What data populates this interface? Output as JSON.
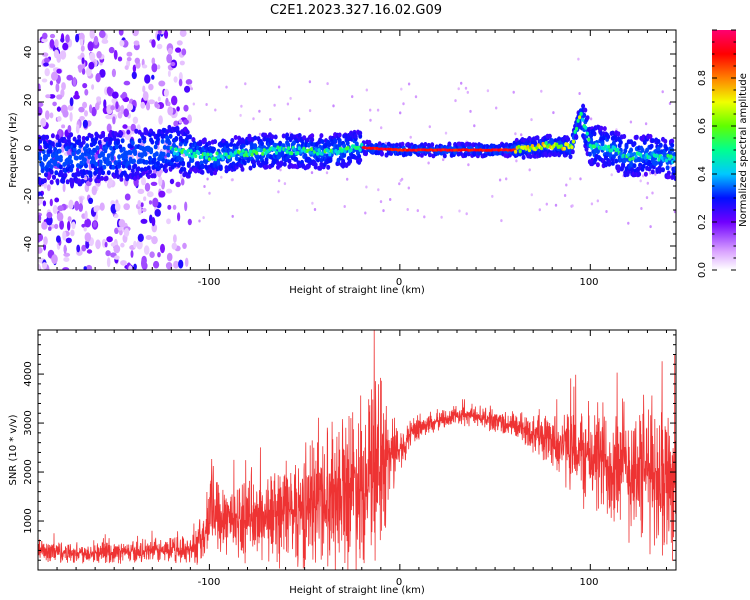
{
  "title": "C2E1.2023.327.16.02.G09",
  "chart_data": [
    {
      "type": "heatmap",
      "xlabel": "Height of straight line (km)",
      "ylabel": "Frequency (Hz)",
      "xlim": [
        -190,
        145
      ],
      "ylim": [
        -50,
        50
      ],
      "xticks": [
        "-100",
        "0",
        "100"
      ],
      "yticks": [
        "-40",
        "-20",
        "0",
        "20",
        "40"
      ],
      "colorbar": {
        "label": "Normalized spectral amplitude",
        "range": [
          0,
          1
        ],
        "ticks": [
          "0.0",
          "0.2",
          "0.4",
          "0.6",
          "0.8"
        ],
        "colors": [
          "#ffffff",
          "#e8c8ff",
          "#8000ff",
          "#0000ff",
          "#00c8ff",
          "#00ff80",
          "#80ff00",
          "#ffff00",
          "#ff8000",
          "#ff0000",
          "#ff0080"
        ]
      },
      "ridge": {
        "x": [
          -190,
          -160,
          -140,
          -120,
          -100,
          -80,
          -60,
          -40,
          -20,
          0,
          20,
          40,
          60,
          70,
          80,
          90,
          95,
          100,
          110,
          120,
          130,
          145
        ],
        "y": [
          -4,
          -3,
          -2,
          0,
          -3,
          -1,
          0,
          -1,
          1,
          0,
          0,
          0,
          0,
          1,
          2,
          1,
          15,
          2,
          1,
          -3,
          -2,
          -4
        ]
      }
    },
    {
      "type": "line",
      "xlabel": "Height of straight line (km)",
      "ylabel": "SNR (10 * v/v)",
      "xlim": [
        -190,
        145
      ],
      "ylim": [
        0,
        4900
      ],
      "xticks": [
        "-100",
        "0",
        "100"
      ],
      "yticks": [
        "1000",
        "2000",
        "3000",
        "4000"
      ],
      "color": "#ee3333",
      "envelope": {
        "x": [
          -190,
          -170,
          -150,
          -130,
          -110,
          -102,
          -100,
          -90,
          -80,
          -70,
          -60,
          -50,
          -40,
          -30,
          -20,
          -10,
          -5,
          0,
          10,
          20,
          30,
          40,
          50,
          60,
          70,
          80,
          90,
          100,
          110,
          120,
          130,
          145
        ],
        "mean": [
          400,
          350,
          360,
          380,
          420,
          700,
          1300,
          1100,
          1000,
          1100,
          1200,
          1300,
          1500,
          1700,
          1900,
          2100,
          2400,
          2500,
          2900,
          3050,
          3150,
          3150,
          3050,
          2950,
          2800,
          2650,
          2450,
          2300,
          2200,
          2100,
          2000,
          1900
        ],
        "amp": [
          300,
          250,
          250,
          300,
          350,
          700,
          1200,
          900,
          900,
          1100,
          1300,
          1500,
          1700,
          1900,
          2100,
          2200,
          1200,
          500,
          350,
          250,
          250,
          250,
          300,
          350,
          450,
          700,
          1000,
          1300,
          1600,
          1700,
          1800,
          1900
        ]
      }
    }
  ]
}
